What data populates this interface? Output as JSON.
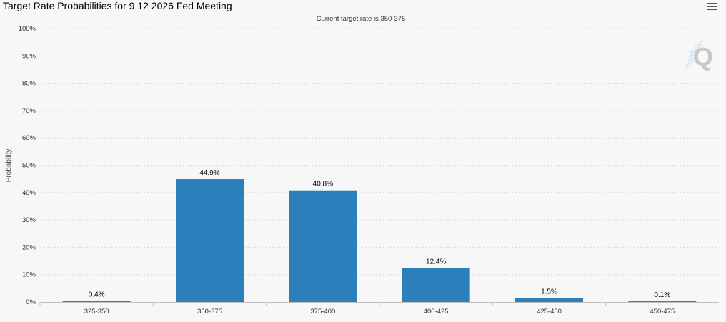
{
  "chart_data": {
    "type": "bar",
    "title": "Target Rate Probabilities for 9 12 2026 Fed Meeting",
    "subtitle": "Current target rate is 350-375",
    "ylabel": "Probability",
    "xlabel": "",
    "categories": [
      "325-350",
      "350-375",
      "375-400",
      "400-425",
      "425-450",
      "450-475"
    ],
    "values": [
      0.4,
      44.9,
      40.8,
      12.4,
      1.5,
      0.1
    ],
    "data_labels": [
      "0.4%",
      "44.9%",
      "40.8%",
      "12.4%",
      "1.5%",
      "0.1%"
    ],
    "ylim": [
      0,
      100
    ],
    "yticks": [
      "0%",
      "10%",
      "20%",
      "30%",
      "40%",
      "50%",
      "60%",
      "70%",
      "80%",
      "90%",
      "100%"
    ],
    "grid": true,
    "bar_color": "#2b7fba"
  }
}
